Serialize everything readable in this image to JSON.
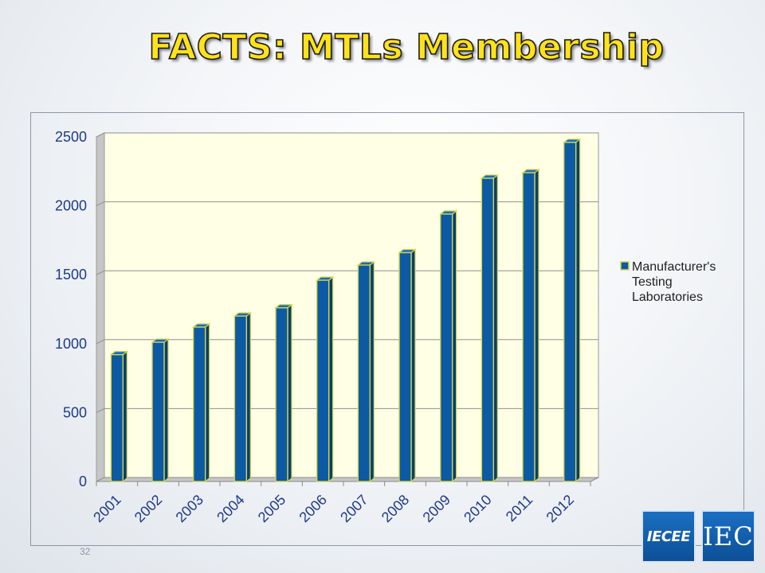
{
  "slide": {
    "title": "FACTS: MTLs Membership",
    "page_number": "32"
  },
  "logos": {
    "iecee": "IECEE",
    "iec": "IEC"
  },
  "colors": {
    "bar_face": "#0b5aa3",
    "bar_edge": "#d6d64a",
    "plot_background": "#ffffe6",
    "wall": "#c6c6c6",
    "tick_text": "#1d3a8a",
    "title_fill": "#ffe21a"
  },
  "chart_data": {
    "type": "bar",
    "categories": [
      "2001",
      "2002",
      "2003",
      "2004",
      "2005",
      "2006",
      "2007",
      "2008",
      "2009",
      "2010",
      "2011",
      "2012"
    ],
    "series": [
      {
        "name": "Manufacturer's Testing Laboratories",
        "values": [
          920,
          1010,
          1120,
          1200,
          1260,
          1460,
          1570,
          1660,
          1940,
          2200,
          2240,
          2460
        ]
      }
    ],
    "yticks": [
      "0",
      "500",
      "1000",
      "1500",
      "2000",
      "2500"
    ],
    "ylim": [
      0,
      2500
    ],
    "grid": true,
    "legend": "right",
    "style": "3d-clustered-column"
  }
}
